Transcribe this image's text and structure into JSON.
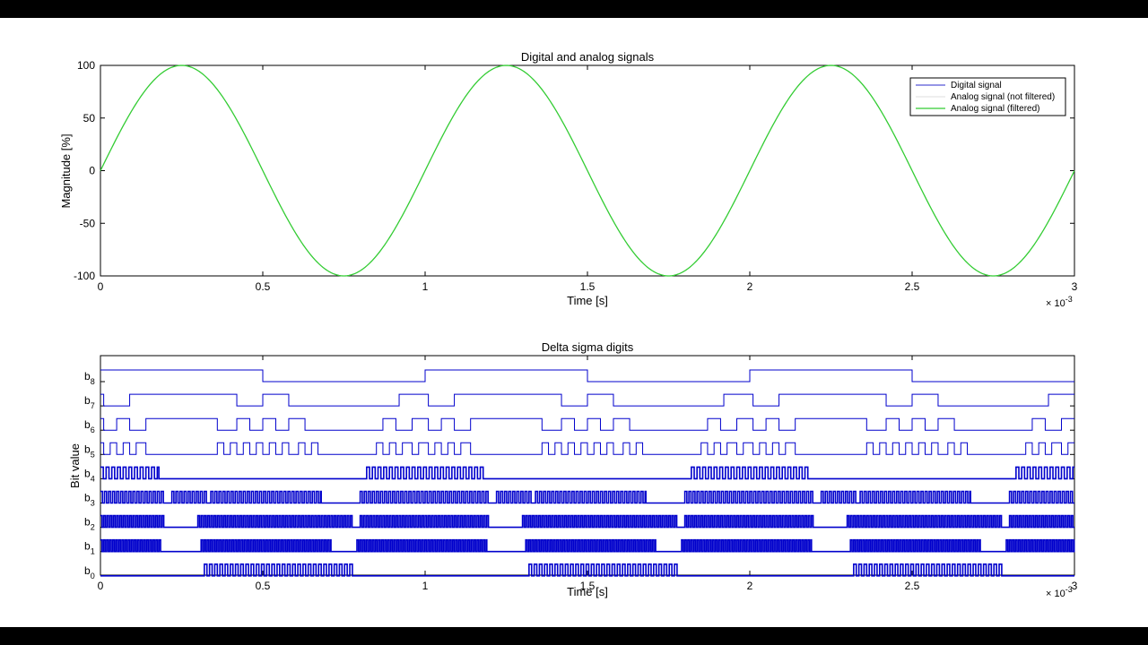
{
  "chart_data": [
    {
      "type": "line",
      "title": "Digital and analog signals",
      "xlabel": "Time [s]",
      "ylabel": "Magnitude [%]",
      "x_exponent": "× 10^-3",
      "xlim": [
        0,
        3
      ],
      "ylim": [
        -100,
        100
      ],
      "xticks": [
        "0",
        "0.5",
        "1",
        "1.5",
        "2",
        "2.5",
        "3"
      ],
      "yticks": [
        "100",
        "50",
        "0",
        "-50",
        "-100"
      ],
      "grid": false,
      "legend_position": "top-right",
      "series": [
        {
          "name": "Digital signal",
          "color": "#2b2bcc",
          "visible_in_plot": false
        },
        {
          "name": "Analog signal (not filtered)",
          "color": "#dddddd",
          "visible_in_plot": false
        },
        {
          "name": "Analog signal (filtered)",
          "color": "#33cc33",
          "function": "100*sin(2*pi*1000*t)",
          "x_units": "ms"
        }
      ]
    },
    {
      "type": "line",
      "title": "Delta sigma digits",
      "xlabel": "Time [s]",
      "ylabel": "Bit value",
      "x_exponent": "× 10^-3",
      "xlim": [
        0,
        3
      ],
      "xticks": [
        "0",
        "0.5",
        "1",
        "1.5",
        "2",
        "2.5",
        "3"
      ],
      "grid": false,
      "line_color": "#0000cc",
      "channels": [
        {
          "label": "b",
          "sub": "8",
          "pattern": "square",
          "high": [
            [
              0,
              0.5
            ],
            [
              1,
              1.5
            ],
            [
              2,
              2.5
            ]
          ]
        },
        {
          "label": "b",
          "sub": "7",
          "pattern": "square",
          "high": [
            [
              0,
              0.01
            ],
            [
              0.09,
              0.42
            ],
            [
              0.5,
              0.58
            ],
            [
              0.92,
              1.01
            ],
            [
              1.09,
              1.42
            ],
            [
              1.5,
              1.58
            ],
            [
              1.92,
              2.01
            ],
            [
              2.09,
              2.42
            ],
            [
              2.5,
              2.58
            ],
            [
              2.92,
              3
            ]
          ]
        },
        {
          "label": "b",
          "sub": "6",
          "pattern": "square",
          "high": [
            [
              0,
              0.01
            ],
            [
              0.05,
              0.09
            ],
            [
              0.14,
              0.36
            ],
            [
              0.42,
              0.46
            ],
            [
              0.5,
              0.54
            ],
            [
              0.58,
              0.63
            ],
            [
              0.87,
              0.91
            ],
            [
              0.96,
              1.01
            ],
            [
              1.05,
              1.09
            ],
            [
              1.14,
              1.36
            ],
            [
              1.42,
              1.46
            ],
            [
              1.5,
              1.54
            ],
            [
              1.58,
              1.63
            ],
            [
              1.87,
              1.91
            ],
            [
              1.96,
              2.01
            ],
            [
              2.05,
              2.09
            ],
            [
              2.14,
              2.36
            ],
            [
              2.42,
              2.46
            ],
            [
              2.5,
              2.54
            ],
            [
              2.58,
              2.63
            ],
            [
              2.87,
              2.91
            ],
            [
              2.96,
              3
            ]
          ]
        },
        {
          "label": "b",
          "sub": "5",
          "pattern": "square",
          "high": [
            [
              0,
              0.01
            ],
            [
              0.03,
              0.05
            ],
            [
              0.07,
              0.09
            ],
            [
              0.11,
              0.14
            ],
            [
              0.36,
              0.38
            ],
            [
              0.4,
              0.42
            ],
            [
              0.44,
              0.46
            ],
            [
              0.48,
              0.5
            ],
            [
              0.52,
              0.54
            ],
            [
              0.56,
              0.58
            ],
            [
              0.61,
              0.63
            ],
            [
              0.65,
              0.67
            ],
            [
              0.85,
              0.87
            ],
            [
              0.89,
              0.91
            ],
            [
              0.93,
              0.96
            ],
            [
              0.98,
              1.01
            ],
            [
              1.03,
              1.05
            ],
            [
              1.07,
              1.09
            ],
            [
              1.11,
              1.14
            ],
            [
              1.36,
              1.38
            ],
            [
              1.4,
              1.42
            ],
            [
              1.44,
              1.46
            ],
            [
              1.48,
              1.5
            ],
            [
              1.52,
              1.54
            ],
            [
              1.56,
              1.58
            ],
            [
              1.61,
              1.63
            ],
            [
              1.65,
              1.67
            ],
            [
              1.85,
              1.87
            ],
            [
              1.89,
              1.91
            ],
            [
              1.93,
              1.96
            ],
            [
              1.98,
              2.01
            ],
            [
              2.03,
              2.05
            ],
            [
              2.07,
              2.09
            ],
            [
              2.11,
              2.14
            ],
            [
              2.36,
              2.38
            ],
            [
              2.4,
              2.42
            ],
            [
              2.44,
              2.46
            ],
            [
              2.48,
              2.5
            ],
            [
              2.52,
              2.54
            ],
            [
              2.56,
              2.58
            ],
            [
              2.61,
              2.63
            ],
            [
              2.65,
              2.67
            ],
            [
              2.85,
              2.87
            ],
            [
              2.89,
              2.91
            ],
            [
              2.93,
              2.96
            ],
            [
              2.98,
              3
            ]
          ]
        },
        {
          "label": "b",
          "sub": "4",
          "pattern": "pulses",
          "bursts": [
            [
              0,
              0.18
            ],
            [
              0.82,
              1.18
            ],
            [
              1.82,
              2.18
            ],
            [
              2.82,
              3
            ]
          ],
          "period": 0.0175
        },
        {
          "label": "b",
          "sub": "3",
          "pattern": "pulses",
          "bursts": [
            [
              0,
              0.2
            ],
            [
              0.22,
              0.33
            ],
            [
              0.34,
              0.68
            ],
            [
              0.8,
              1.2
            ],
            [
              1.22,
              1.33
            ],
            [
              1.34,
              1.68
            ],
            [
              1.8,
              2.2
            ],
            [
              2.22,
              2.33
            ],
            [
              2.34,
              2.68
            ],
            [
              2.8,
              3
            ]
          ],
          "period": 0.0125
        },
        {
          "label": "b",
          "sub": "2",
          "pattern": "pulses",
          "bursts": [
            [
              0,
              0.2
            ],
            [
              0.3,
              0.78
            ],
            [
              0.8,
              1.2
            ],
            [
              1.3,
              1.78
            ],
            [
              1.8,
              2.2
            ],
            [
              2.3,
              2.78
            ],
            [
              2.8,
              3
            ]
          ],
          "period": 0.01
        },
        {
          "label": "b",
          "sub": "1",
          "pattern": "pulses",
          "bursts": [
            [
              0,
              0.19
            ],
            [
              0.31,
              0.71
            ],
            [
              0.79,
              1.19
            ],
            [
              1.31,
              1.71
            ],
            [
              1.79,
              2.19
            ],
            [
              2.31,
              2.71
            ],
            [
              2.79,
              3
            ]
          ],
          "period": 0.0095
        },
        {
          "label": "b",
          "sub": "0",
          "pattern": "pulses",
          "bursts": [
            [
              0.32,
              0.78
            ],
            [
              1.32,
              1.78
            ],
            [
              2.32,
              2.78
            ]
          ],
          "period": 0.016
        }
      ]
    }
  ]
}
